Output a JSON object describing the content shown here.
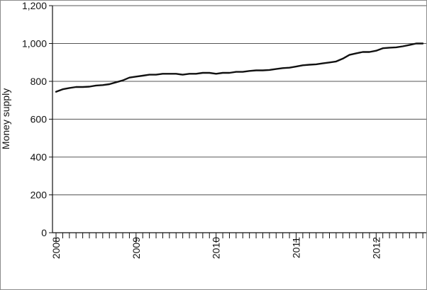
{
  "chart_data": {
    "type": "line",
    "title": "",
    "xlabel": "",
    "ylabel": "Money supply",
    "ylim": [
      0,
      1200
    ],
    "yticks": [
      0,
      200,
      400,
      600,
      800,
      1000,
      1200
    ],
    "ytick_labels": [
      "0",
      "200",
      "400",
      "600",
      "800",
      "1,000",
      "1,200"
    ],
    "xlim": [
      2008,
      2012.6
    ],
    "xticks": [
      2008,
      2009,
      2010,
      2011,
      2012
    ],
    "xtick_labels": [
      "2008",
      "2009",
      "2010",
      "2011",
      "2012"
    ],
    "minor_ticks_per_year": 12,
    "grid": "horizontal",
    "legend": "none",
    "line_color": "#111111",
    "grid_color": "#555555",
    "series": [
      {
        "x": [
          2008.0,
          2008.083,
          2008.167,
          2008.25,
          2008.333,
          2008.417,
          2008.5,
          2008.583,
          2008.667,
          2008.75,
          2008.833,
          2008.917,
          2009.0,
          2009.083,
          2009.167,
          2009.25,
          2009.333,
          2009.417,
          2009.5,
          2009.583,
          2009.667,
          2009.75,
          2009.833,
          2009.917,
          2010.0,
          2010.083,
          2010.167,
          2010.25,
          2010.333,
          2010.417,
          2010.5,
          2010.583,
          2010.667,
          2010.75,
          2010.833,
          2010.917,
          2011.0,
          2011.083,
          2011.167,
          2011.25,
          2011.333,
          2011.417,
          2011.5,
          2011.583,
          2011.667,
          2011.75,
          2011.833,
          2011.917,
          2012.0,
          2012.083,
          2012.167,
          2012.25,
          2012.333,
          2012.417,
          2012.5,
          2012.583
        ],
        "values": [
          745,
          758,
          765,
          770,
          770,
          772,
          778,
          780,
          785,
          795,
          805,
          820,
          825,
          830,
          835,
          835,
          840,
          840,
          840,
          835,
          840,
          840,
          845,
          845,
          840,
          845,
          845,
          850,
          850,
          855,
          858,
          858,
          860,
          865,
          870,
          872,
          878,
          885,
          888,
          890,
          895,
          900,
          905,
          920,
          940,
          948,
          955,
          955,
          962,
          975,
          978,
          980,
          985,
          992,
          1000,
          1000
        ]
      }
    ]
  }
}
